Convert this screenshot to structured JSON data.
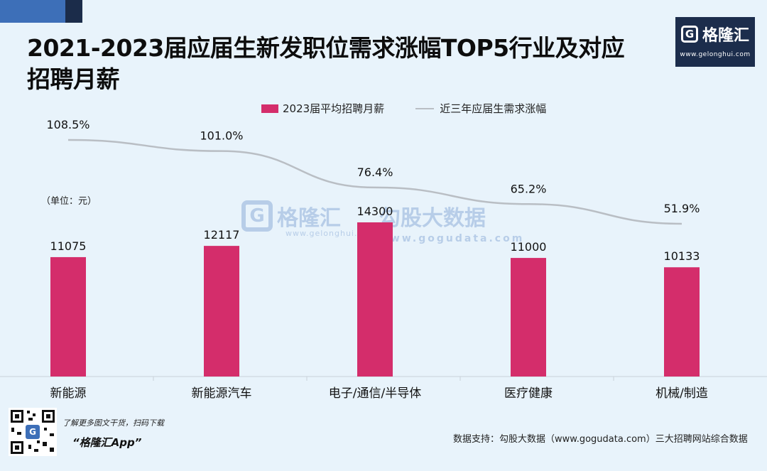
{
  "title": "2021-2023届应届生新发职位需求涨幅TOP5行业及对应招聘月薪",
  "logo": {
    "name": "格隆汇",
    "url": "www.gelonghui.com",
    "icon_letter": "G"
  },
  "unit_note": "（单位：元）",
  "watermarks": {
    "gelonghui": {
      "text": "格隆汇",
      "sub": "www.gelonghui.com",
      "icon_letter": "G"
    },
    "gogudata": {
      "text": "勾股大数据",
      "sub": "www.gogudata.com"
    }
  },
  "footer": {
    "promo_line": "了解更多图文干货，扫码下载",
    "app_name": "“格隆汇App”",
    "qr_letter": "G",
    "source": "数据支持：勾股大数据（www.gogudata.com）三大招聘网站综合数据"
  },
  "colors": {
    "bar": "#d42d6b",
    "line": "#b9bec4",
    "background": "#e8f3fb",
    "header": "#1c2d4c"
  },
  "chart_data": {
    "type": "bar",
    "categories": [
      "新能源",
      "新能源汽车",
      "电子/通信/半导体",
      "医疗健康",
      "机械/制造"
    ],
    "series": [
      {
        "name": "2023届平均招聘月薪",
        "type": "bar",
        "values": [
          11075,
          12117,
          14300,
          11000,
          10133
        ],
        "labels": [
          "11075",
          "12117",
          "14300",
          "11000",
          "10133"
        ]
      },
      {
        "name": "近三年应届生需求涨幅",
        "type": "line",
        "values": [
          108.5,
          101.0,
          76.4,
          65.2,
          51.9
        ],
        "labels": [
          "108.5%",
          "101.0%",
          "76.4%",
          "65.2%",
          "51.9%"
        ]
      }
    ],
    "legend": "top-center",
    "grid": false
  }
}
